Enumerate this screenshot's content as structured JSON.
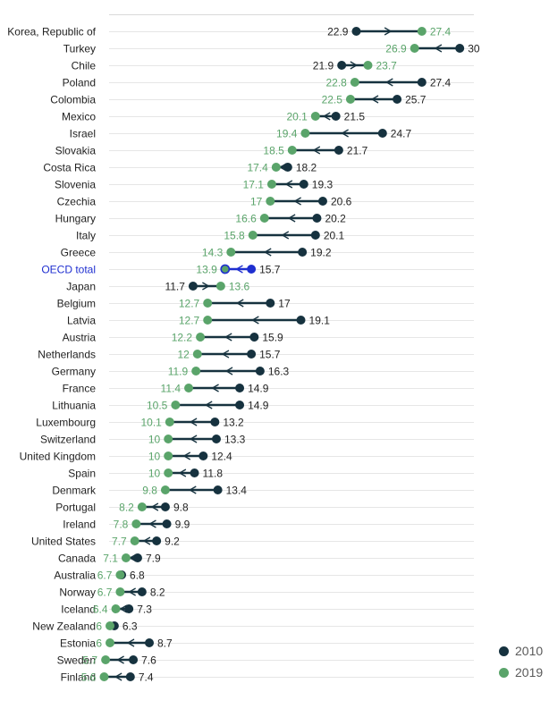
{
  "chart_data": {
    "type": "dot-arrow",
    "series": [
      {
        "name": "2010",
        "color": "#16323f"
      },
      {
        "name": "2019",
        "color": "#5aa46a"
      }
    ],
    "highlight_color": "#1f2fd0",
    "highlight_label": "OECD total",
    "xlim": [
      0,
      33
    ],
    "rows": [
      {
        "label": "Korea, Republic of",
        "v2010": 22.9,
        "v2019": 27.4
      },
      {
        "label": "Turkey",
        "v2010": 30,
        "v2019": 26.9
      },
      {
        "label": "Chile",
        "v2010": 21.9,
        "v2019": 23.7
      },
      {
        "label": "Poland",
        "v2010": 27.4,
        "v2019": 22.8
      },
      {
        "label": "Colombia",
        "v2010": 25.7,
        "v2019": 22.5
      },
      {
        "label": "Mexico",
        "v2010": 21.5,
        "v2019": 20.1
      },
      {
        "label": "Israel",
        "v2010": 24.7,
        "v2019": 19.4
      },
      {
        "label": "Slovakia",
        "v2010": 21.7,
        "v2019": 18.5
      },
      {
        "label": "Costa Rica",
        "v2010": 18.2,
        "v2019": 17.4
      },
      {
        "label": "Slovenia",
        "v2010": 19.3,
        "v2019": 17.1
      },
      {
        "label": "Czechia",
        "v2010": 20.6,
        "v2019": 17
      },
      {
        "label": "Hungary",
        "v2010": 20.2,
        "v2019": 16.6
      },
      {
        "label": "Italy",
        "v2010": 20.1,
        "v2019": 15.8
      },
      {
        "label": "Greece",
        "v2010": 19.2,
        "v2019": 14.3
      },
      {
        "label": "OECD total",
        "v2010": 15.7,
        "v2019": 13.9
      },
      {
        "label": "Japan",
        "v2010": 11.7,
        "v2019": 13.6
      },
      {
        "label": "Belgium",
        "v2010": 17,
        "v2019": 12.7
      },
      {
        "label": "Latvia",
        "v2010": 19.1,
        "v2019": 12.7
      },
      {
        "label": "Austria",
        "v2010": 15.9,
        "v2019": 12.2
      },
      {
        "label": "Netherlands",
        "v2010": 15.7,
        "v2019": 12
      },
      {
        "label": "Germany",
        "v2010": 16.3,
        "v2019": 11.9
      },
      {
        "label": "France",
        "v2010": 14.9,
        "v2019": 11.4
      },
      {
        "label": "Lithuania",
        "v2010": 14.9,
        "v2019": 10.5
      },
      {
        "label": "Luxembourg",
        "v2010": 13.2,
        "v2019": 10.1
      },
      {
        "label": "Switzerland",
        "v2010": 13.3,
        "v2019": 10
      },
      {
        "label": "United Kingdom",
        "v2010": 12.4,
        "v2019": 10
      },
      {
        "label": "Spain",
        "v2010": 11.8,
        "v2019": 10
      },
      {
        "label": "Denmark",
        "v2010": 13.4,
        "v2019": 9.8
      },
      {
        "label": "Portugal",
        "v2010": 9.8,
        "v2019": 8.2
      },
      {
        "label": "Ireland",
        "v2010": 9.9,
        "v2019": 7.8
      },
      {
        "label": "United States",
        "v2010": 9.2,
        "v2019": 7.7
      },
      {
        "label": "Canada",
        "v2010": 7.9,
        "v2019": 7.1
      },
      {
        "label": "Australia",
        "v2010": 6.8,
        "v2019": 6.7
      },
      {
        "label": "Norway",
        "v2010": 8.2,
        "v2019": 6.7
      },
      {
        "label": "Iceland",
        "v2010": 7.3,
        "v2019": 6.4
      },
      {
        "label": "New Zealand",
        "v2010": 6.3,
        "v2019": 6
      },
      {
        "label": "Estonia",
        "v2010": 8.7,
        "v2019": 6
      },
      {
        "label": "Sweden",
        "v2010": 7.6,
        "v2019": 5.7
      },
      {
        "label": "Finland",
        "v2010": 7.4,
        "v2019": 5.6
      }
    ]
  }
}
